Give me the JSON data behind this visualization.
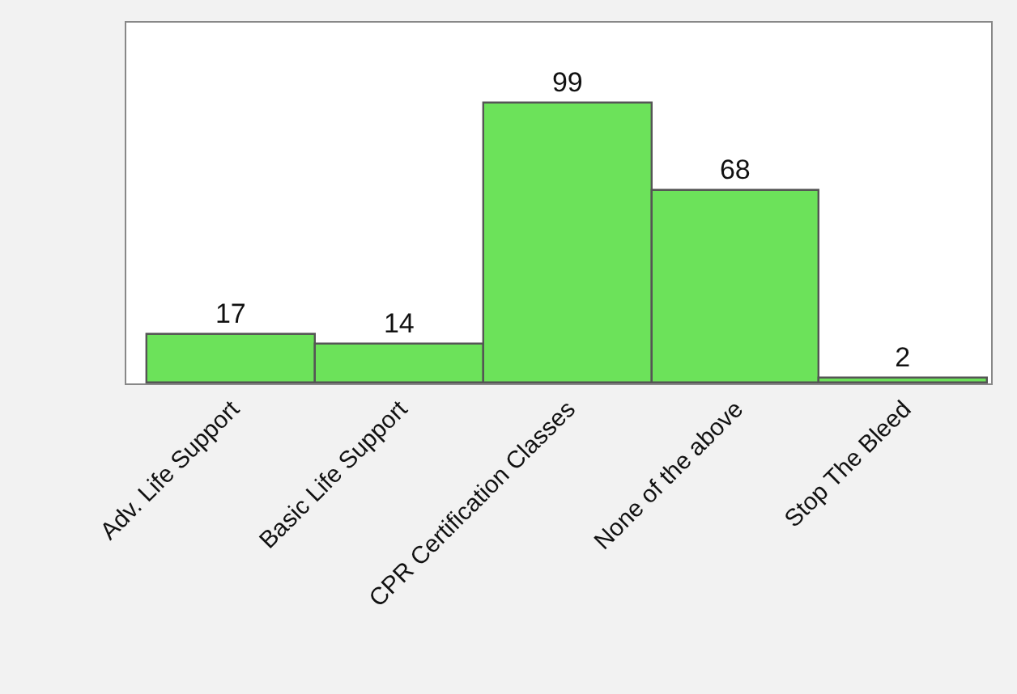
{
  "chart_data": {
    "type": "bar",
    "categories": [
      "Adv. Life Support",
      "Basic Life Support",
      "CPR Certification Classes",
      "None of the above",
      "Stop The Bleed"
    ],
    "values": [
      17,
      14,
      99,
      68,
      2
    ],
    "color": "#6ce25a",
    "data_labels": true,
    "tick_labels": "x",
    "legend": false
  }
}
